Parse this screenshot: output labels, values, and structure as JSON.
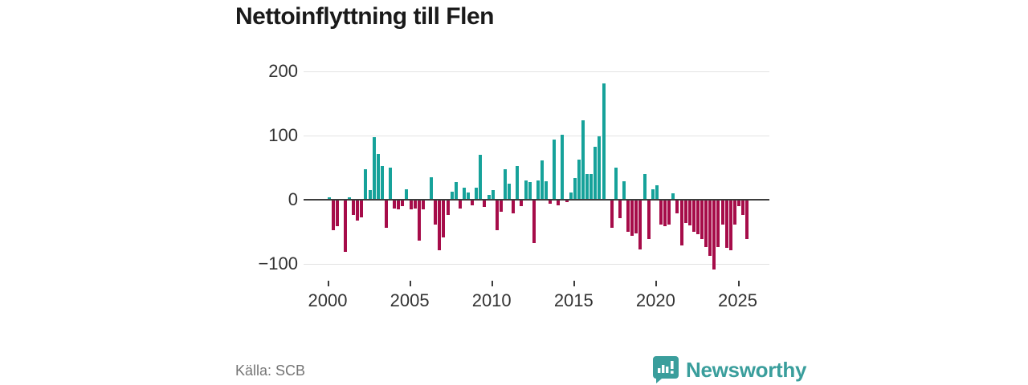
{
  "title": "Nettoinflyttning till Flen",
  "source": "Källa: SCB",
  "logo": {
    "brand": "Newsworthy",
    "icon": "newsworthy-speech-bubble-barchart-icon"
  },
  "colors": {
    "positive_bar": "#16a29a",
    "negative_bar": "#a60c49",
    "zero_axis": "#3d3d3d",
    "gridline": "#e3e3e3",
    "axis_text": "#333333",
    "muted_text": "#757575",
    "brand_teal": "#3a9e9c",
    "title_text": "#1a1a1a"
  },
  "chart_data": {
    "type": "bar",
    "title": "Nettoinflyttning till Flen",
    "frequency": "quarterly",
    "start_period": "2000Q1",
    "end_period": "2025Q3",
    "x_tick_labels": [
      "2000",
      "2005",
      "2010",
      "2015",
      "2020",
      "2025"
    ],
    "y_ticks": [
      200,
      100,
      0,
      -100
    ],
    "y_tick_labels": [
      "200",
      "100",
      "0",
      "−100"
    ],
    "ylim": [
      -126,
      211
    ],
    "grid": "horizontal",
    "legend": "none",
    "ylabel": "",
    "xlabel": "",
    "values": [
      4,
      -46,
      -40,
      0,
      -80,
      4,
      -23,
      -31,
      -26,
      47,
      15,
      97,
      71,
      52,
      -43,
      50,
      -12,
      -14,
      -9,
      16,
      -14,
      -12,
      -62,
      -14,
      0,
      35,
      -37,
      -77,
      -57,
      -23,
      12,
      27,
      -12,
      19,
      11,
      -8,
      19,
      70,
      -10,
      8,
      15,
      -46,
      -18,
      47,
      25,
      -20,
      52,
      -9,
      30,
      27,
      -66,
      30,
      61,
      29,
      -5,
      94,
      -7,
      101,
      -2,
      11,
      34,
      63,
      124,
      40,
      40,
      83,
      99,
      181,
      0,
      -43,
      50,
      -28,
      29,
      -49,
      -55,
      -51,
      -76,
      40,
      -60,
      16,
      22,
      -38,
      -40,
      -37,
      10,
      -20,
      -70,
      -35,
      -39,
      -49,
      -53,
      -60,
      -72,
      -86,
      -107,
      -72,
      -37,
      -74,
      -78,
      -37,
      -9,
      -22,
      -60
    ]
  }
}
